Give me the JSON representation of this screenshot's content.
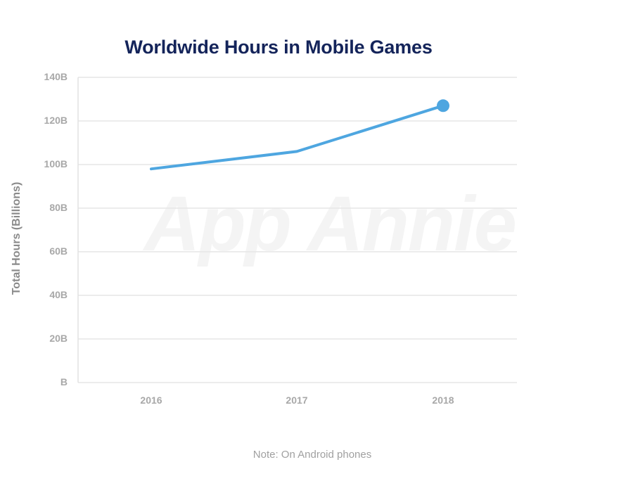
{
  "title": "Worldwide Hours in Mobile Games",
  "note": "Note: On Android phones",
  "watermark": "App Annie",
  "colors": {
    "title": "#14245a",
    "line": "#4ea6e0",
    "grid": "#e6e6e6",
    "tick": "#a8a8a8"
  },
  "chart_data": {
    "type": "line",
    "title": "Worldwide Hours in Mobile Games",
    "xlabel": "",
    "ylabel": "Total Hours (Billions)",
    "categories": [
      "2016",
      "2017",
      "2018"
    ],
    "series": [
      {
        "name": "Total Hours",
        "values": [
          98,
          106,
          127
        ],
        "unit": "B"
      }
    ],
    "ylim": [
      0,
      140
    ],
    "yticks": [
      "B",
      "20B",
      "40B",
      "60B",
      "80B",
      "100B",
      "120B",
      "140B"
    ],
    "grid": true,
    "legend": "none",
    "annotations": [
      "Note: On Android phones"
    ]
  }
}
